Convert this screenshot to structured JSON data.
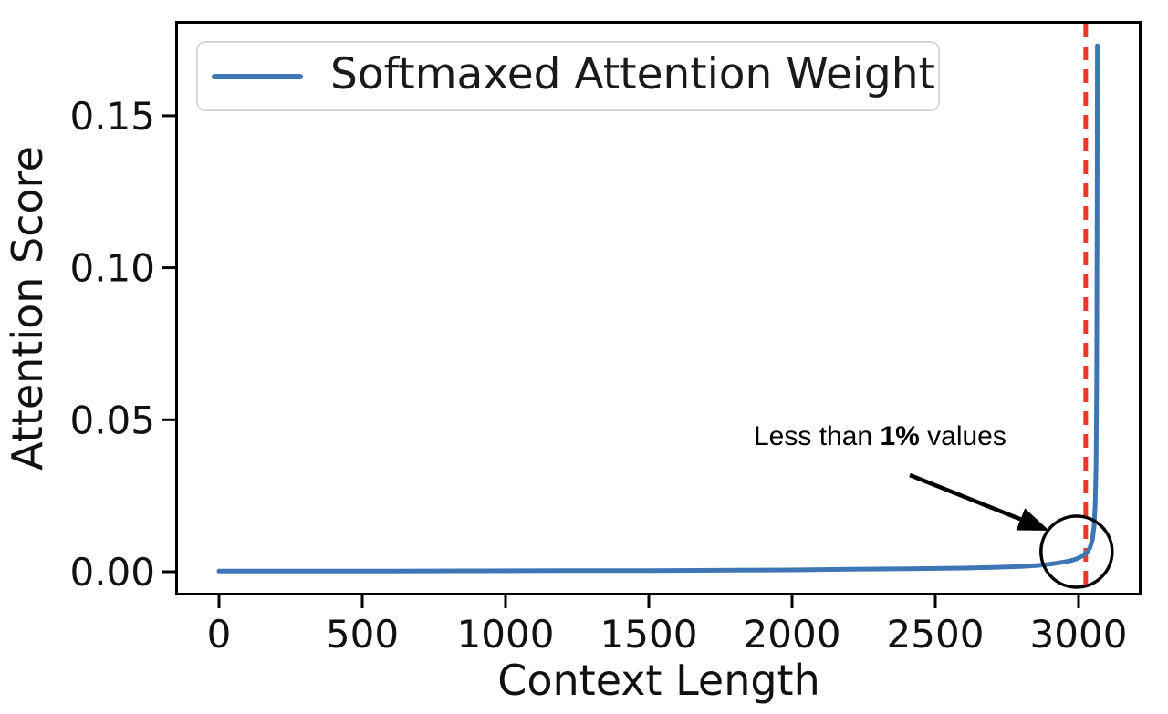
{
  "figure": {
    "background": "#ffffff"
  },
  "legend": {
    "label": "Softmaxed Attention Weight",
    "swatch_color": "#3e76b5"
  },
  "annotation": {
    "prefix": "Less than ",
    "bold": "1%",
    "suffix": " values"
  },
  "chart_data": {
    "type": "line",
    "title": "",
    "xlabel": "Context Length",
    "ylabel": "Attention Score",
    "xlim": [
      -150,
      3220
    ],
    "ylim": [
      -0.008,
      0.181
    ],
    "grid": false,
    "legend_position": "upper left",
    "x_ticks": [
      {
        "v": 0,
        "label": "0"
      },
      {
        "v": 500,
        "label": "500"
      },
      {
        "v": 1000,
        "label": "1000"
      },
      {
        "v": 1500,
        "label": "1500"
      },
      {
        "v": 2000,
        "label": "2000"
      },
      {
        "v": 2500,
        "label": "2500"
      },
      {
        "v": 3000,
        "label": "3000"
      }
    ],
    "y_ticks": [
      {
        "v": 0.0,
        "label": "0.00"
      },
      {
        "v": 0.05,
        "label": "0.05"
      },
      {
        "v": 0.1,
        "label": "0.10"
      },
      {
        "v": 0.15,
        "label": "0.15"
      }
    ],
    "series": [
      {
        "name": "Softmaxed Attention Weight",
        "color": "#3e76b5",
        "points": [
          [
            0,
            0.0002
          ],
          [
            300,
            0.0002
          ],
          [
            600,
            0.00025
          ],
          [
            900,
            0.0003
          ],
          [
            1200,
            0.00035
          ],
          [
            1500,
            0.0004
          ],
          [
            1800,
            0.0005
          ],
          [
            2000,
            0.0006
          ],
          [
            2200,
            0.0008
          ],
          [
            2400,
            0.001
          ],
          [
            2600,
            0.0012
          ],
          [
            2700,
            0.0014
          ],
          [
            2800,
            0.0017
          ],
          [
            2850,
            0.002
          ],
          [
            2900,
            0.0025
          ],
          [
            2950,
            0.0032
          ],
          [
            2980,
            0.0038
          ],
          [
            3000,
            0.0045
          ],
          [
            3015,
            0.0053
          ],
          [
            3030,
            0.0065
          ],
          [
            3040,
            0.008
          ],
          [
            3048,
            0.0105
          ],
          [
            3054,
            0.015
          ],
          [
            3058,
            0.022
          ],
          [
            3061,
            0.035
          ],
          [
            3063,
            0.06
          ],
          [
            3064,
            0.09
          ],
          [
            3065,
            0.13
          ],
          [
            3065.5,
            0.173
          ]
        ]
      }
    ],
    "vline": {
      "x": 3025,
      "color": "#e8392c",
      "style": "dashed"
    },
    "callout": {
      "text": "Less than 1% values",
      "circle_center": [
        2993,
        0.0066
      ],
      "arrow_from": [
        2411,
        0.0318
      ],
      "arrow_to": [
        2898,
        0.0135
      ],
      "color": "#000000"
    }
  }
}
